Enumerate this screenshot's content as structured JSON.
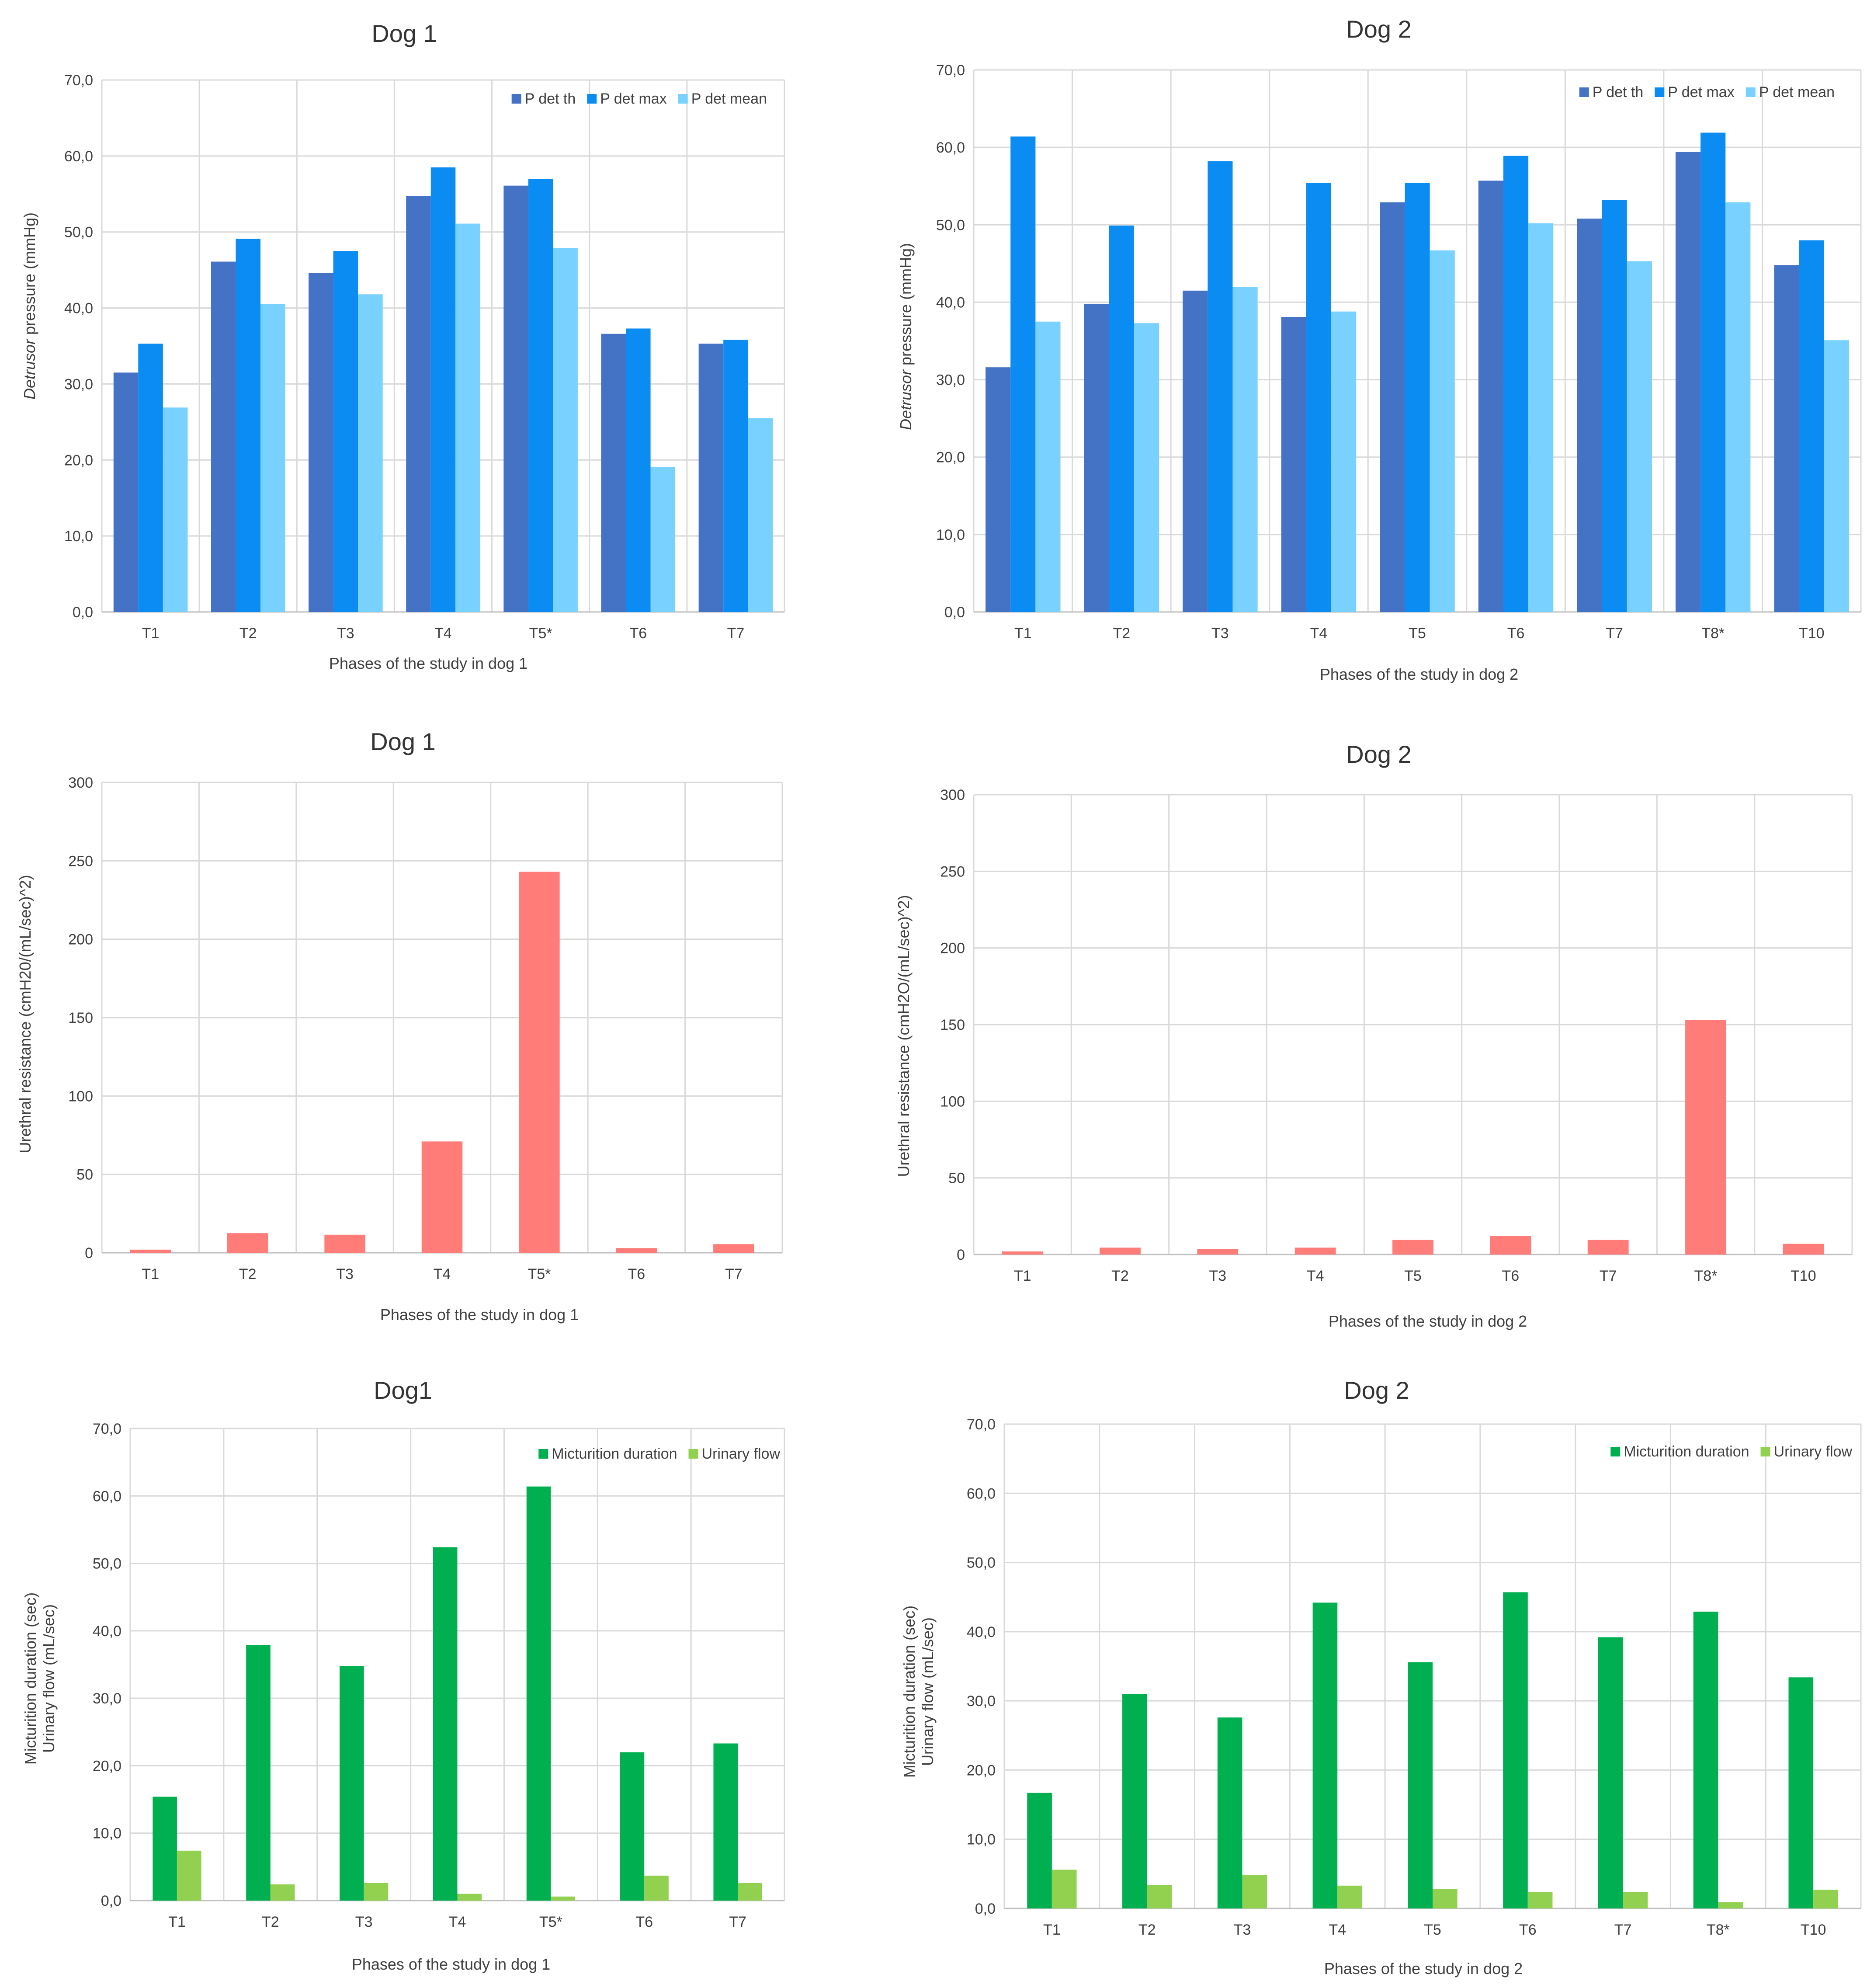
{
  "chart_data": [
    {
      "type": "bar",
      "title": "Dog 1",
      "xlabel": "Phases of the study in dog 1",
      "ylabel": "Detrusor pressure (mmHg)",
      "ylabel_italic": "Detrusor",
      "ylabel_rest": " pressure (mmHg)",
      "ylim": [
        0,
        70
      ],
      "yticks": [
        "0,0",
        "10,0",
        "20,0",
        "30,0",
        "40,0",
        "50,0",
        "60,0",
        "70,0"
      ],
      "grid": true,
      "legend_position": "top-right",
      "categories": [
        "T1",
        "T2",
        "T3",
        "T4",
        "T5*",
        "T6",
        "T7"
      ],
      "series": [
        {
          "name": "P det th",
          "color": "#4472C4",
          "values": [
            31.5,
            46.1,
            44.6,
            54.7,
            56.1,
            36.6,
            35.3
          ]
        },
        {
          "name": "P det max",
          "color": "#0B8CF2",
          "values": [
            35.3,
            49.1,
            47.5,
            58.5,
            57.0,
            37.3,
            35.8
          ]
        },
        {
          "name": "P det mean",
          "color": "#79D1FF",
          "values": [
            26.9,
            40.5,
            41.8,
            51.1,
            47.9,
            19.1,
            25.5
          ]
        }
      ]
    },
    {
      "type": "bar",
      "title": "Dog 2",
      "xlabel": "Phases of the study in dog 2",
      "ylabel": "Detrusor pressure (mmHg)",
      "ylabel_italic": "Detrusor",
      "ylabel_rest": " pressure (mmHg)",
      "ylim": [
        0,
        70
      ],
      "yticks": [
        "0,0",
        "10,0",
        "20,0",
        "30,0",
        "40,0",
        "50,0",
        "60,0",
        "70,0"
      ],
      "grid": true,
      "legend_position": "top-right",
      "categories": [
        "T1",
        "T2",
        "T3",
        "T4",
        "T5",
        "T6",
        "T7",
        "T8*",
        "T10"
      ],
      "series": [
        {
          "name": "P det th",
          "color": "#4472C4",
          "values": [
            31.6,
            39.8,
            41.5,
            38.1,
            52.9,
            55.7,
            50.8,
            59.4,
            44.8
          ]
        },
        {
          "name": "P det max",
          "color": "#0B8CF2",
          "values": [
            61.4,
            49.9,
            58.2,
            55.4,
            55.4,
            58.9,
            53.2,
            61.9,
            48.0
          ]
        },
        {
          "name": "P det mean",
          "color": "#79D1FF",
          "values": [
            37.5,
            37.3,
            42.0,
            38.8,
            46.7,
            50.2,
            45.3,
            52.9,
            35.1
          ]
        }
      ]
    },
    {
      "type": "bar",
      "title": "Dog 1",
      "xlabel": "Phases of the study in dog 1",
      "ylabel": "Urethral resistance (cmH20/(mL/sec)^2)",
      "ylim": [
        0,
        300
      ],
      "yticks": [
        "0",
        "50",
        "100",
        "150",
        "200",
        "250",
        "300"
      ],
      "grid": true,
      "categories": [
        "T1",
        "T2",
        "T3",
        "T4",
        "T5*",
        "T6",
        "T7"
      ],
      "series": [
        {
          "color": "#FF7C78",
          "values": [
            2.0,
            12.5,
            11.5,
            71.0,
            243.0,
            3.0,
            5.5
          ]
        }
      ]
    },
    {
      "type": "bar",
      "title": "Dog 2",
      "xlabel": "Phases of the study in dog 2",
      "ylabel": "Urethral resistance (cmH2O/(mL/sec)^2)",
      "ylim": [
        0,
        300
      ],
      "yticks": [
        "0",
        "50",
        "100",
        "150",
        "200",
        "250",
        "300"
      ],
      "grid": true,
      "categories": [
        "T1",
        "T2",
        "T3",
        "T4",
        "T5",
        "T6",
        "T7",
        "T8*",
        "T10"
      ],
      "series": [
        {
          "color": "#FF7C78",
          "values": [
            2.0,
            4.5,
            3.5,
            4.5,
            9.5,
            12.0,
            9.5,
            153.0,
            7.0
          ]
        }
      ]
    },
    {
      "type": "bar",
      "title": "Dog1",
      "xlabel": "Phases of the study in dog 1",
      "ylabel_lines": [
        "Micturition duration (sec)",
        "Urinary flow (mL/sec)"
      ],
      "ylim": [
        0,
        70
      ],
      "yticks": [
        "0,0",
        "10,0",
        "20,0",
        "30,0",
        "40,0",
        "50,0",
        "60,0",
        "70,0"
      ],
      "grid": true,
      "legend_position": "top-right",
      "categories": [
        "T1",
        "T2",
        "T3",
        "T4",
        "T5*",
        "T6",
        "T7"
      ],
      "series": [
        {
          "name": "Micturition duration",
          "color": "#00B050",
          "values": [
            15.4,
            37.9,
            34.8,
            52.4,
            61.4,
            22.0,
            23.3
          ]
        },
        {
          "name": "Urinary flow",
          "color": "#92D050",
          "values": [
            7.4,
            2.4,
            2.6,
            1.0,
            0.6,
            3.7,
            2.6
          ]
        }
      ]
    },
    {
      "type": "bar",
      "title": "Dog 2",
      "xlabel": "Phases of the study in dog 2",
      "ylabel_lines": [
        "Micturition duration (sec)",
        "Urinary flow (mL/sec)"
      ],
      "ylim": [
        0,
        70
      ],
      "yticks": [
        "0,0",
        "10,0",
        "20,0",
        "30,0",
        "40,0",
        "50,0",
        "60,0",
        "70,0"
      ],
      "grid": true,
      "legend_position": "top-right",
      "categories": [
        "T1",
        "T2",
        "T3",
        "T4",
        "T5",
        "T6",
        "T7",
        "T8*",
        "T10"
      ],
      "series": [
        {
          "name": "Micturition duration",
          "color": "#00B050",
          "values": [
            16.7,
            31.0,
            27.6,
            44.2,
            35.6,
            45.7,
            39.2,
            42.9,
            33.4
          ]
        },
        {
          "name": "Urinary flow",
          "color": "#92D050",
          "values": [
            5.6,
            3.4,
            4.8,
            3.3,
            2.8,
            2.4,
            2.4,
            0.9,
            2.7
          ]
        }
      ]
    }
  ]
}
